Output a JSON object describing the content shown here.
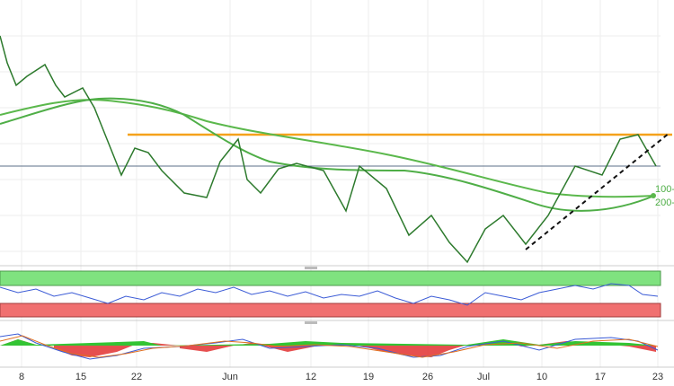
{
  "x_axis": {
    "labels": [
      "8",
      "15",
      "22",
      "Jun",
      "12",
      "19",
      "26",
      "Jul",
      "10",
      "17",
      "23"
    ]
  },
  "moving_averages": {
    "labels": [
      "100-",
      "200-"
    ]
  }
}
